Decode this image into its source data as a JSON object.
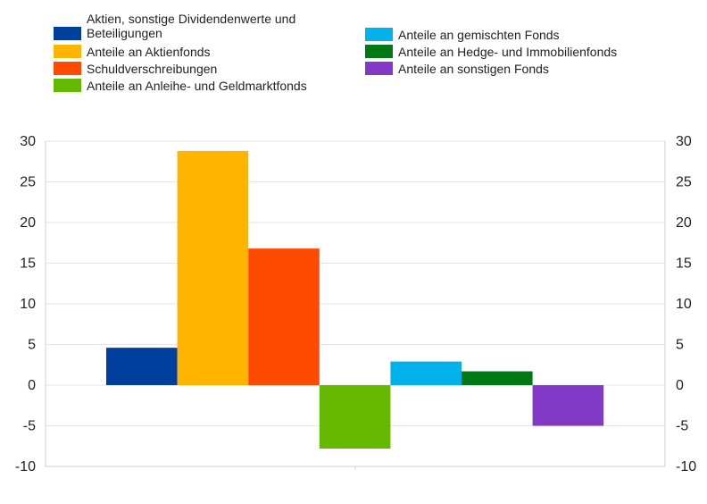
{
  "chart_data": {
    "type": "bar",
    "title": "",
    "xlabel": "",
    "ylabel": "",
    "ylim": [
      -10,
      30
    ],
    "yticks": [
      30,
      25,
      20,
      15,
      10,
      5,
      0,
      -5,
      -10
    ],
    "dual_y_axis": true,
    "grid": "horizontal",
    "legend_position": "top",
    "series": [
      {
        "name": "Aktien, sonstige Dividendenwerte und Beteiligungen",
        "value": 4.6,
        "color": "#003f9e"
      },
      {
        "name": "Anteile an Aktienfonds",
        "value": 28.8,
        "color": "#ffb400"
      },
      {
        "name": "Schuldverschreibungen",
        "value": 16.8,
        "color": "#ff4b00"
      },
      {
        "name": "Anteile an Anleihe- und Geldmarktfonds",
        "value": -7.8,
        "color": "#65b800"
      },
      {
        "name": "Anteile an gemischten Fonds",
        "value": 2.9,
        "color": "#00b1ea"
      },
      {
        "name": "Anteile an Hedge- und Immobilienfonds",
        "value": 1.7,
        "color": "#007816"
      },
      {
        "name": "Anteile an sonstigen Fonds",
        "value": -5.0,
        "color": "#8139c6"
      }
    ]
  },
  "legend": {
    "left": [
      {
        "label_line1": "Aktien, sonstige Dividendenwerte und",
        "label_line2": "Beteiligungen",
        "color": "#003f9e"
      },
      {
        "label_line1": "Anteile an Aktienfonds",
        "color": "#ffb400"
      },
      {
        "label_line1": "Schuldverschreibungen",
        "color": "#ff4b00"
      },
      {
        "label_line1": "Anteile an Anleihe- und Geldmarktfonds",
        "color": "#65b800"
      }
    ],
    "right": [
      {
        "label_line1": "Anteile an gemischten Fonds",
        "color": "#00b1ea"
      },
      {
        "label_line1": "Anteile an Hedge- und Immobilienfonds",
        "color": "#007816"
      },
      {
        "label_line1": "Anteile an sonstigen Fonds",
        "color": "#8139c6"
      }
    ]
  }
}
